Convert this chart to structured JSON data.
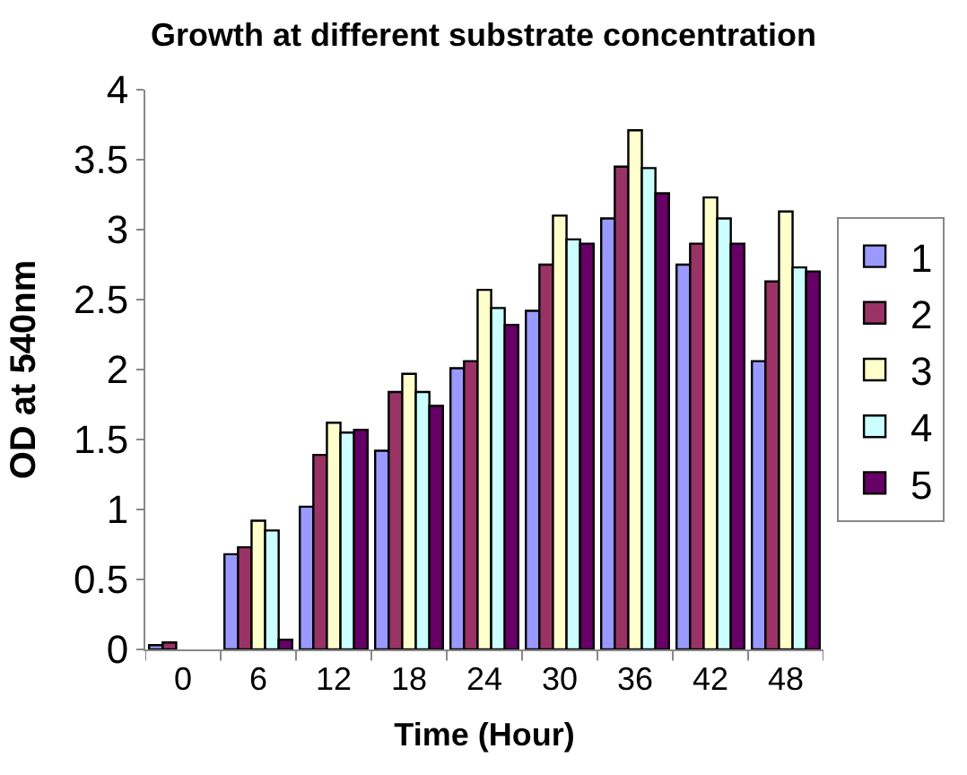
{
  "chart_data": {
    "type": "bar",
    "title": "Growth at different substrate concentration",
    "xlabel": "Time (Hour)",
    "ylabel": "OD at 540nm",
    "categories": [
      "0",
      "6",
      "12",
      "18",
      "24",
      "30",
      "36",
      "42",
      "48"
    ],
    "series": [
      {
        "name": "1",
        "color": "#9999ff",
        "values": [
          0.03,
          0.68,
          1.02,
          1.42,
          2.01,
          2.42,
          3.08,
          2.75,
          2.06
        ]
      },
      {
        "name": "2",
        "color": "#993366",
        "values": [
          0.05,
          0.73,
          1.39,
          1.84,
          2.06,
          2.75,
          3.45,
          2.9,
          2.63
        ]
      },
      {
        "name": "3",
        "color": "#ffffcc",
        "values": [
          null,
          0.92,
          1.62,
          1.97,
          2.57,
          3.1,
          3.71,
          3.23,
          3.13
        ]
      },
      {
        "name": "4",
        "color": "#ccffff",
        "values": [
          null,
          0.85,
          1.55,
          1.84,
          2.44,
          2.93,
          3.44,
          3.08,
          2.73
        ]
      },
      {
        "name": "5",
        "color": "#660066",
        "values": [
          null,
          0.07,
          1.57,
          1.74,
          2.32,
          2.9,
          3.26,
          2.9,
          2.7
        ]
      }
    ],
    "ylim": [
      0,
      4
    ],
    "yticks": [
      0,
      0.5,
      1,
      1.5,
      2,
      2.5,
      3,
      3.5,
      4
    ],
    "grid": false,
    "legend": "right"
  }
}
